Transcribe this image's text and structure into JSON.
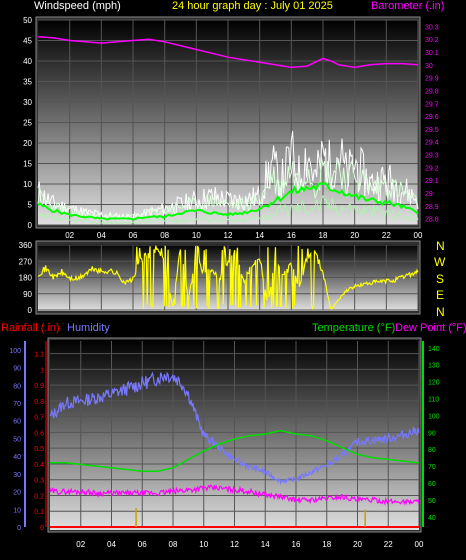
{
  "header": {
    "wind_label": "Windspeed (mph)",
    "title": "24 hour graph day : July 01 2025",
    "baro_label": "Barometer (.in)"
  },
  "lower_header": {
    "rain_label": "Rainfall (.in)",
    "humidity_label": "Humidity",
    "temp_label": "Temperature (°F)",
    "dew_label": "Dew Point (°F)"
  },
  "colors": {
    "wind_label": "#ffffff",
    "title": "#ffff00",
    "barometer": "#ff00ff",
    "wind_avg": "#00ff00",
    "wind_gust": "#ffffff",
    "wind_low": "#b4f0b4",
    "direction": "#ffff00",
    "compass": "#ffff00",
    "rain": "#ff0000",
    "humidity": "#7878ff",
    "temperature": "#00dd00",
    "dew_point": "#ff00ff",
    "rain_rate_bars": "#c8a000"
  },
  "compass": [
    "N",
    "W",
    "S",
    "E",
    "N"
  ],
  "chart_data": [
    {
      "type": "line",
      "name": "wind-barometer",
      "title": "24 hour graph day : July 01 2025",
      "xlabel": "",
      "ylabel": "Windspeed (mph)",
      "y2label": "Barometer (.in)",
      "x_ticks": [
        "02",
        "04",
        "06",
        "08",
        "10",
        "12",
        "14",
        "16",
        "18",
        "20",
        "22",
        "00"
      ],
      "y_ticks": [
        "0",
        "5",
        "10",
        "15",
        "20",
        "25",
        "30",
        "35",
        "40",
        "45",
        "50"
      ],
      "ylim": [
        0,
        50
      ],
      "y2_ticks": [
        "28.8",
        "28.9",
        "29",
        "29.1",
        "29.2",
        "29.3",
        "29.4",
        "29.5",
        "29.6",
        "29.7",
        "29.8",
        "29.9",
        "30",
        "30.1",
        "30.2",
        "30.3"
      ],
      "y2lim": [
        28.75,
        30.35
      ],
      "grid": true,
      "series": [
        {
          "name": "Barometer (.in)",
          "axis": "right",
          "style": "baro",
          "x": [
            0,
            1,
            2,
            3,
            4,
            5,
            6,
            7,
            8,
            9,
            10,
            11,
            12,
            13,
            14,
            15,
            16,
            17,
            17.5,
            18,
            18.5,
            19,
            20,
            21,
            22,
            23,
            24
          ],
          "values": [
            30.22,
            30.21,
            30.19,
            30.18,
            30.17,
            30.18,
            30.19,
            30.2,
            30.18,
            30.15,
            30.12,
            30.09,
            30.06,
            30.04,
            30.02,
            30.0,
            29.98,
            29.99,
            30.02,
            30.05,
            30.03,
            30.0,
            29.98,
            30.0,
            30.01,
            30.01,
            30.0
          ]
        },
        {
          "name": "Windspeed gust",
          "axis": "left",
          "style": "gust",
          "x": [
            0,
            1,
            2,
            3,
            4,
            5,
            6,
            7,
            8,
            9,
            10,
            11,
            12,
            13,
            14,
            14.8,
            15.3,
            16,
            16.5,
            17,
            17.5,
            18,
            18.5,
            19,
            19.5,
            20,
            21,
            22,
            23,
            24
          ],
          "values": [
            8,
            5,
            4,
            3,
            2.5,
            2,
            2,
            3,
            4,
            5,
            6,
            7,
            6,
            6,
            7,
            15,
            10,
            17,
            12,
            18,
            11,
            17,
            14,
            18,
            12,
            15,
            10,
            11,
            9,
            6
          ]
        },
        {
          "name": "Windspeed high",
          "axis": "left",
          "style": "high",
          "x": [
            0,
            1,
            2,
            3,
            4,
            5,
            6,
            7,
            8,
            9,
            10,
            11,
            12,
            13,
            14,
            14.8,
            15.3,
            16,
            16.5,
            17,
            17.5,
            18,
            18.5,
            19,
            19.5,
            20,
            21,
            22,
            23,
            24
          ],
          "values": [
            7,
            4.5,
            3.5,
            2.5,
            2,
            2,
            2,
            3,
            3.5,
            4.5,
            5,
            6,
            5,
            5,
            6,
            12,
            9,
            14,
            10,
            15,
            10,
            14,
            12,
            15,
            10,
            13,
            9,
            10,
            8,
            5
          ]
        },
        {
          "name": "Windspeed average",
          "axis": "left",
          "style": "avg",
          "x": [
            0,
            1,
            2,
            3,
            4,
            5,
            6,
            7,
            8,
            9,
            10,
            11,
            12,
            13,
            14,
            15,
            16,
            17,
            18,
            19,
            20,
            21,
            22,
            23,
            24
          ],
          "values": [
            5,
            3.5,
            2.5,
            2,
            1.5,
            1.5,
            1.5,
            2,
            2,
            3,
            3.5,
            3,
            2.5,
            3,
            4,
            6,
            8,
            9,
            9.5,
            8.5,
            7,
            6,
            5.5,
            4.5,
            3
          ]
        },
        {
          "name": "Windspeed low",
          "axis": "left",
          "style": "low",
          "x": [
            0,
            1,
            2,
            3,
            4,
            5,
            6,
            7,
            8,
            9,
            10,
            11,
            12,
            13,
            14,
            15,
            16,
            17,
            18,
            19,
            20,
            21,
            22,
            23,
            24
          ],
          "values": [
            2,
            1.5,
            1,
            1,
            0.5,
            0.5,
            0.5,
            1,
            1,
            1,
            1.5,
            1.5,
            1,
            1,
            2,
            3,
            4,
            4.5,
            5,
            4.5,
            4,
            3.5,
            3,
            2,
            1.5
          ]
        }
      ]
    },
    {
      "type": "line",
      "name": "wind-direction",
      "x_ticks": [
        "02",
        "04",
        "06",
        "08",
        "10",
        "12",
        "14",
        "16",
        "18",
        "20",
        "22",
        "00"
      ],
      "y_ticks": [
        "0",
        "90",
        "180",
        "270",
        "360"
      ],
      "ylim": [
        0,
        360
      ],
      "grid": true,
      "series": [
        {
          "name": "Wind direction",
          "style": "dir",
          "x": [
            0,
            0.5,
            1,
            1.5,
            2,
            2.5,
            3,
            3.5,
            4,
            4.5,
            5,
            5.5,
            6,
            6.5,
            7,
            7.5,
            8,
            8.5,
            9,
            9.5,
            10,
            10.5,
            11,
            11.5,
            12,
            12.5,
            13,
            13.5,
            14,
            14.5,
            15,
            15.5,
            16,
            16.5,
            17,
            17.5,
            18,
            18.5,
            19,
            19.5,
            20,
            20.5,
            21,
            21.5,
            22,
            22.5,
            23,
            23.5,
            24
          ],
          "values": [
            200,
            230,
            180,
            210,
            175,
            170,
            200,
            230,
            210,
            220,
            200,
            150,
            170,
            280,
            300,
            320,
            290,
            10,
            340,
            60,
            300,
            200,
            220,
            180,
            260,
            330,
            160,
            250,
            300,
            30,
            290,
            190,
            250,
            120,
            300,
            320,
            210,
            0,
            60,
            110,
            130,
            140,
            150,
            155,
            160,
            165,
            180,
            200,
            210
          ]
        }
      ]
    },
    {
      "type": "line",
      "name": "rain-humidity-temp",
      "x_ticks": [
        "02",
        "04",
        "06",
        "08",
        "10",
        "12",
        "14",
        "16",
        "18",
        "20",
        "22",
        "00"
      ],
      "y_rain_ticks": [
        "0",
        "0.1",
        "0.2",
        "0.3",
        "0.4",
        "0.5",
        "0.6",
        "0.7",
        "0.8",
        "0.9",
        "1",
        "1.1"
      ],
      "y_rain_lim": [
        0,
        1.18
      ],
      "y_hum_ticks": [
        "0",
        "10",
        "20",
        "30",
        "40",
        "50",
        "60",
        "70",
        "80",
        "90",
        "100"
      ],
      "y_hum_lim": [
        0,
        105
      ],
      "y_temp_ticks": [
        "40",
        "50",
        "60",
        "70",
        "80",
        "90",
        "100",
        "110",
        "120",
        "130",
        "140"
      ],
      "y_temp_lim": [
        34,
        144
      ],
      "grid": true,
      "series": [
        {
          "name": "Humidity",
          "axis": "hum",
          "style": "hum",
          "x": [
            0,
            1,
            2,
            3,
            4,
            5,
            6,
            7,
            7.5,
            8,
            8.5,
            9,
            9.5,
            10,
            11,
            12,
            13,
            14,
            15,
            16,
            17,
            18,
            19,
            20,
            21,
            22,
            23,
            24
          ],
          "values": [
            62,
            70,
            71,
            73,
            75,
            78,
            81,
            84,
            86,
            85,
            82,
            75,
            63,
            52,
            45,
            38,
            34,
            31,
            26,
            27,
            31,
            35,
            40,
            48,
            49,
            50,
            52,
            55
          ]
        },
        {
          "name": "Temperature (°F)",
          "axis": "temp",
          "style": "temp",
          "x": [
            0,
            1,
            2,
            3,
            4,
            5,
            6,
            7,
            8,
            9,
            10,
            11,
            12,
            13,
            14,
            15,
            16,
            17,
            18,
            19,
            20,
            21,
            22,
            23,
            24
          ],
          "values": [
            72,
            72,
            71,
            70,
            69,
            68,
            67,
            67,
            69,
            74,
            79,
            83,
            86,
            88,
            89,
            91,
            89,
            88,
            85,
            81,
            77,
            75,
            74,
            73,
            72
          ]
        },
        {
          "name": "Dew Point (°F)",
          "axis": "temp",
          "style": "dew",
          "x": [
            0,
            1,
            2,
            3,
            4,
            5,
            6,
            7,
            8,
            9,
            10,
            11,
            12,
            13,
            14,
            15,
            16,
            17,
            18,
            19,
            20,
            21,
            22,
            23,
            24
          ],
          "values": [
            55,
            55,
            55,
            54,
            54,
            54,
            54,
            54,
            55,
            56,
            57,
            57,
            56,
            55,
            53,
            52,
            50,
            50,
            51,
            52,
            50,
            50,
            49,
            49,
            49
          ]
        },
        {
          "name": "Rainfall (.in)",
          "axis": "rain",
          "style": "rain",
          "x": [
            0,
            24
          ],
          "values": [
            0,
            0
          ]
        }
      ],
      "rain_rate_ticks": [
        {
          "x": 5.6,
          "value": 0.12
        },
        {
          "x": 20.5,
          "value": 0.11
        }
      ]
    }
  ]
}
